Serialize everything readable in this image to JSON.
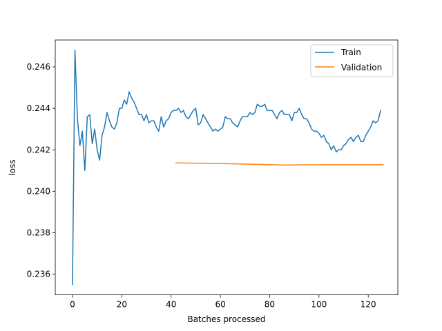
{
  "chart_data": {
    "type": "line",
    "title": "",
    "xlabel": "Batches processed",
    "ylabel": "loss",
    "xlim": [
      -7,
      132
    ],
    "ylim": [
      0.235,
      0.2473
    ],
    "xticks": [
      0,
      20,
      40,
      60,
      80,
      100,
      120
    ],
    "yticks": [
      0.236,
      0.238,
      0.24,
      0.242,
      0.244,
      0.246
    ],
    "grid": false,
    "legend": "top-right",
    "series": [
      {
        "name": "Train",
        "color": "#1f77b4",
        "x": [
          0,
          1,
          2,
          3,
          4,
          5,
          6,
          7,
          8,
          9,
          10,
          11,
          12,
          13,
          14,
          15,
          16,
          17,
          18,
          19,
          20,
          21,
          22,
          23,
          24,
          25,
          26,
          27,
          28,
          29,
          30,
          31,
          32,
          33,
          34,
          35,
          36,
          37,
          38,
          39,
          40,
          41,
          42,
          43,
          44,
          45,
          46,
          47,
          48,
          49,
          50,
          51,
          52,
          53,
          54,
          55,
          56,
          57,
          58,
          59,
          60,
          61,
          62,
          63,
          64,
          65,
          66,
          67,
          68,
          69,
          70,
          71,
          72,
          73,
          74,
          75,
          76,
          77,
          78,
          79,
          80,
          81,
          82,
          83,
          84,
          85,
          86,
          87,
          88,
          89,
          90,
          91,
          92,
          93,
          94,
          95,
          96,
          97,
          98,
          99,
          100,
          101,
          102,
          103,
          104,
          105,
          106,
          107,
          108,
          109,
          110,
          111,
          112,
          113,
          114,
          115,
          116,
          117,
          118,
          119,
          120,
          121,
          122,
          123,
          124,
          125
        ],
        "values": [
          0.2355,
          0.2468,
          0.2435,
          0.2422,
          0.2429,
          0.241,
          0.2436,
          0.2437,
          0.2423,
          0.243,
          0.242,
          0.2415,
          0.2427,
          0.2431,
          0.2438,
          0.2434,
          0.2431,
          0.243,
          0.2433,
          0.244,
          0.244,
          0.2444,
          0.2442,
          0.2448,
          0.2445,
          0.2443,
          0.244,
          0.2437,
          0.2437,
          0.2434,
          0.2437,
          0.2433,
          0.2434,
          0.2434,
          0.2431,
          0.2429,
          0.2436,
          0.2431,
          0.2434,
          0.2435,
          0.2438,
          0.2439,
          0.2439,
          0.244,
          0.2438,
          0.2439,
          0.2436,
          0.2435,
          0.2437,
          0.2439,
          0.244,
          0.2432,
          0.2433,
          0.2437,
          0.2435,
          0.2433,
          0.2431,
          0.2429,
          0.243,
          0.2429,
          0.243,
          0.2431,
          0.2436,
          0.2435,
          0.2435,
          0.2433,
          0.2432,
          0.2431,
          0.2434,
          0.2436,
          0.2436,
          0.2436,
          0.2438,
          0.2437,
          0.2438,
          0.2442,
          0.2441,
          0.2441,
          0.2442,
          0.2439,
          0.2439,
          0.2439,
          0.2437,
          0.2435,
          0.2438,
          0.2439,
          0.2437,
          0.2437,
          0.2437,
          0.2434,
          0.2438,
          0.2438,
          0.244,
          0.2437,
          0.2435,
          0.2435,
          0.2433,
          0.243,
          0.2429,
          0.2429,
          0.2428,
          0.2426,
          0.2427,
          0.2424,
          0.2423,
          0.242,
          0.2422,
          0.2419,
          0.242,
          0.242,
          0.2422,
          0.2423,
          0.2425,
          0.2426,
          0.2424,
          0.2426,
          0.2427,
          0.2424,
          0.2424,
          0.2427,
          0.2429,
          0.2431,
          0.2434,
          0.2433,
          0.2434,
          0.2439
        ]
      },
      {
        "name": "Validation",
        "color": "#ff7f0e",
        "x": [
          42,
          63,
          85,
          105,
          126
        ],
        "values": [
          0.24137,
          0.24133,
          0.24127,
          0.24128,
          0.24128
        ]
      }
    ]
  }
}
